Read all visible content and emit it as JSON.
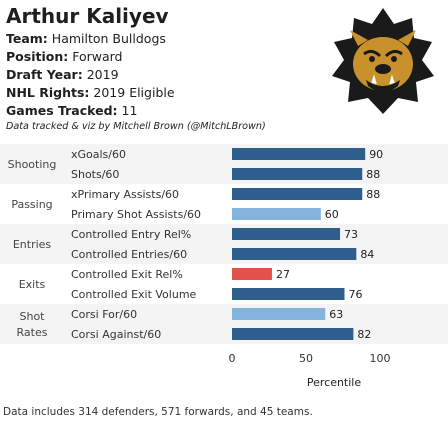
{
  "player": {
    "name": "Arthur Kaliyev",
    "team_label": "Team:",
    "team": "Hamilton Bulldogs",
    "position_label": "Position:",
    "position": "Forward",
    "draft_label": "Draft Year:",
    "draft_year": "2019",
    "rights_label": "NHL Rights:",
    "rights": "2019 Eligible",
    "games_label": "Games Tracked:",
    "games": "11"
  },
  "credit": "Data tracked & viz by Mitchell Brown (@MitchLBrown)",
  "logo": {
    "icon": "bulldog-logo-icon",
    "colors": {
      "fill": "#1a1a1a",
      "accent": "#c8912c"
    }
  },
  "colors": {
    "high": "#2f5d8c",
    "mid": "#84b3dc",
    "low": "#e2524a",
    "stripe": "#f4f4f4"
  },
  "chart_data": {
    "type": "bar",
    "orientation": "horizontal",
    "groups": [
      {
        "name": "Shooting",
        "metrics": [
          {
            "label": "xGoals/60",
            "value": 90
          },
          {
            "label": "Shots/60",
            "value": 88
          }
        ]
      },
      {
        "name": "Passing",
        "metrics": [
          {
            "label": "xPrimary Assists/60",
            "value": 88
          },
          {
            "label": "Primary Shot Assists/60",
            "value": 60
          }
        ]
      },
      {
        "name": "Entries",
        "metrics": [
          {
            "label": "Controlled Entry Rel%",
            "value": 73
          },
          {
            "label": "Controlled Entries/60",
            "value": 84
          }
        ]
      },
      {
        "name": "Exits",
        "metrics": [
          {
            "label": "Controlled Exit Rel%",
            "value": 27
          },
          {
            "label": "Controlled Exit Volume",
            "value": 76
          }
        ]
      },
      {
        "name": "Shot\nRates",
        "metrics": [
          {
            "label": "Corsi For/60",
            "value": 63
          },
          {
            "label": "Corsi Against/60",
            "value": 82
          }
        ]
      }
    ],
    "xlim": [
      0,
      100
    ],
    "xticks": [
      "0",
      "50",
      "100"
    ],
    "xlabel": "Percentile"
  },
  "footnote": "Data includes 314 defenders, 571 forwards, and 45 teams."
}
